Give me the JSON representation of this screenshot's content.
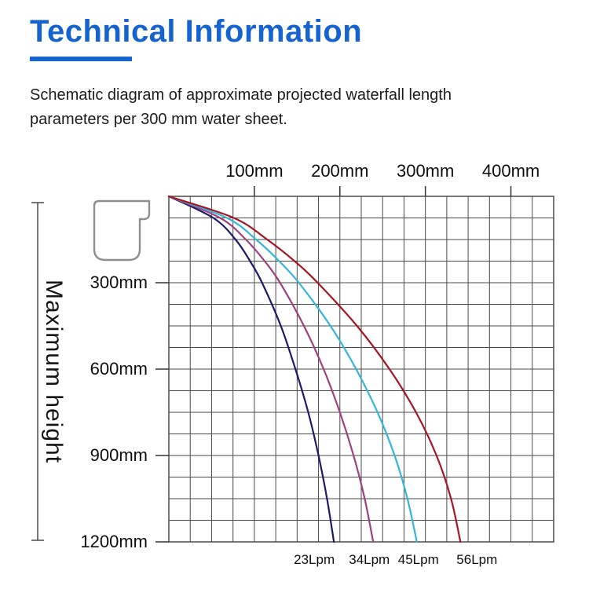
{
  "page": {
    "title": "Technical Information",
    "description": "Schematic diagram of approximate projected waterfall length parameters per 300 mm water sheet."
  },
  "colors": {
    "accent_blue": "#1463cf",
    "grid_line": "#4a4a4a",
    "axis_tick": "#333333",
    "bracket": "#555555",
    "spout_outline": "#8f8f8f"
  },
  "icons": {
    "spout": "waterfall-spout-profile-icon",
    "bracket": "height-dimension-bracket"
  },
  "chart_data": {
    "type": "line",
    "x_axis": {
      "position": "top",
      "unit": "mm",
      "ticks_mm": [
        100,
        200,
        300,
        400
      ],
      "tick_labels": [
        "100mm",
        "200mm",
        "300mm",
        "400mm"
      ],
      "range_mm": [
        0,
        450
      ]
    },
    "y_axis": {
      "title": "Maximum height",
      "unit": "mm",
      "ticks_mm": [
        300,
        600,
        900,
        1200
      ],
      "tick_labels": [
        "300mm",
        "600mm",
        "900mm",
        "1200mm"
      ],
      "range_mm": [
        0,
        1200
      ]
    },
    "grid": {
      "visible": true,
      "minor_cols": 18,
      "minor_rows": 16
    },
    "series": [
      {
        "name": "23Lpm",
        "color": "#1c1b6b",
        "points_height_mm_length_mm": [
          [
            0,
            0
          ],
          [
            75,
            52
          ],
          [
            150,
            78
          ],
          [
            225,
            95
          ],
          [
            300,
            109
          ],
          [
            450,
            131
          ],
          [
            600,
            148
          ],
          [
            750,
            163
          ],
          [
            900,
            175
          ],
          [
            1050,
            185
          ],
          [
            1200,
            193
          ]
        ]
      },
      {
        "name": "34Lpm",
        "color": "#a04080",
        "points_height_mm_length_mm": [
          [
            0,
            0
          ],
          [
            75,
            60
          ],
          [
            150,
            90
          ],
          [
            225,
            112
          ],
          [
            300,
            130
          ],
          [
            450,
            158
          ],
          [
            600,
            181
          ],
          [
            750,
            200
          ],
          [
            900,
            216
          ],
          [
            1050,
            229
          ],
          [
            1200,
            239
          ]
        ]
      },
      {
        "name": "45Lpm",
        "color": "#35b6d9",
        "points_height_mm_length_mm": [
          [
            0,
            0
          ],
          [
            75,
            68
          ],
          [
            150,
            102
          ],
          [
            225,
            129
          ],
          [
            300,
            152
          ],
          [
            450,
            189
          ],
          [
            600,
            219
          ],
          [
            750,
            244
          ],
          [
            900,
            264
          ],
          [
            1050,
            279
          ],
          [
            1200,
            290
          ]
        ]
      },
      {
        "name": "56Lpm",
        "color": "#a51622",
        "points_height_mm_length_mm": [
          [
            0,
            0
          ],
          [
            75,
            76
          ],
          [
            150,
            115
          ],
          [
            225,
            147
          ],
          [
            300,
            174
          ],
          [
            450,
            220
          ],
          [
            600,
            258
          ],
          [
            750,
            289
          ],
          [
            900,
            313
          ],
          [
            1050,
            330
          ],
          [
            1200,
            341
          ]
        ]
      }
    ]
  }
}
